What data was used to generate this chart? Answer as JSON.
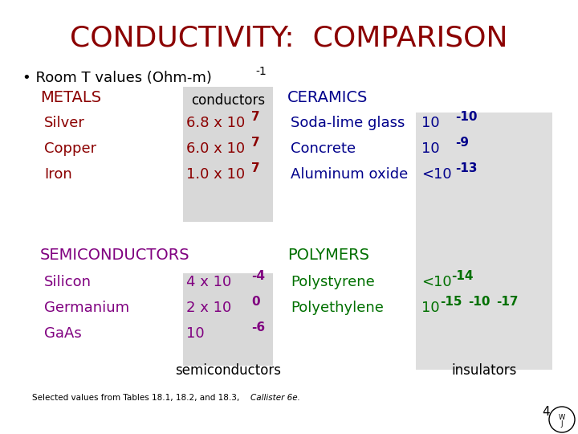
{
  "title": "CONDUCTIVITY:  COMPARISON",
  "title_color": "#8B0000",
  "bg_color": "#FFFFFF",
  "subtitle": "• Room T values (Ohm-m)",
  "subtitle_sup": "-1",
  "metals_header": "METALS",
  "metals_color": "#8B0000",
  "metals": [
    {
      "name": "Silver",
      "val": "6.8 x 10",
      "exp": "7"
    },
    {
      "name": "Copper",
      "val": "6.0 x 10",
      "exp": "7"
    },
    {
      "name": "Iron",
      "val": "1.0 x 10",
      "exp": "7"
    }
  ],
  "conductors_label": "conductors",
  "conductors_box_color": "#BEBEBE",
  "ceramics_header": "CERAMICS",
  "ceramics_color": "#00008B",
  "ceramics": [
    {
      "name": "Soda-lime glass",
      "val": "10",
      "exp": "-10"
    },
    {
      "name": "Concrete",
      "val": "10",
      "exp": "-9"
    },
    {
      "name": "Aluminum oxide",
      "val": "<10",
      "exp": "-13"
    }
  ],
  "insulators_box_color": "#BEBEBE",
  "semiconductors_header": "SEMICONDUCTORS",
  "semiconductors_color": "#800080",
  "semiconductors": [
    {
      "name": "Silicon",
      "val": "4 x 10",
      "exp": "-4"
    },
    {
      "name": "Germanium",
      "val": "2 x 10",
      "exp": "0"
    },
    {
      "name": "GaAs",
      "val": "10",
      "exp": "-6"
    }
  ],
  "semiconductors_label": "semiconductors",
  "polymers_header": "POLYMERS",
  "polymers_color": "#007000",
  "polymers": [
    {
      "name": "Polystyrene",
      "val": "<10",
      "exp": "-14"
    },
    {
      "name": "Polyethylene",
      "val": "10",
      "exp2": "-15",
      "dash": "-10",
      "exp3": "-17"
    }
  ],
  "insulators_label": "insulators",
  "footer": "Selected values from Tables 18.1, 18.2, and 18.3, ",
  "footer_italic": "Callister 6e.",
  "page_num": "4"
}
